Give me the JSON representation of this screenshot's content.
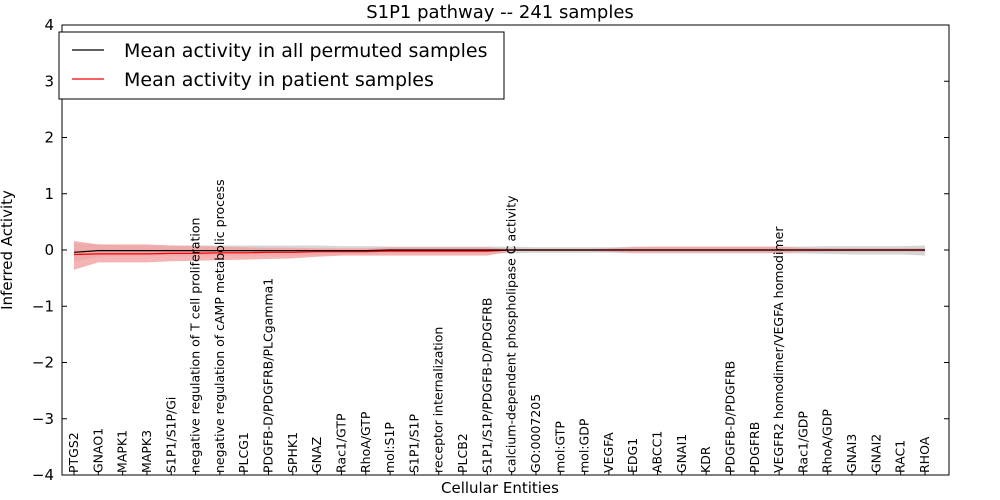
{
  "chart_data": {
    "type": "line",
    "title": "S1P1 pathway -- 241 samples",
    "xlabel": "Cellular Entities",
    "ylabel": "Inferred Activity",
    "ylim": [
      -4,
      4
    ],
    "yticks": [
      4,
      3,
      2,
      1,
      0,
      -1,
      -2,
      -3,
      -4
    ],
    "ytick_labels": [
      "4",
      "3",
      "2",
      "1",
      "0",
      "−1",
      "−2",
      "−3",
      "−4"
    ],
    "legend_position": "top-left",
    "categories": [
      "PTGS2",
      "GNAO1",
      "MAPK1",
      "MAPK3",
      "S1P1/S1P/Gi",
      "negative regulation of T cell proliferation",
      "negative regulation of cAMP metabolic process",
      "PLCG1",
      "PDGFB-D/PDGFRB/PLCgamma1",
      "SPHK1",
      "GNAZ",
      "Rac1/GTP",
      "RhoA/GTP",
      "mol:S1P",
      "S1P1/S1P",
      "receptor internalization",
      "PLCB2",
      "S1P1/S1P/PDGFB-D/PDGFRB",
      "calcium-dependent phospholipase C activity",
      "GO:0007205",
      "mol:GTP",
      "mol:GDP",
      "VEGFA",
      "EDG1",
      "ABCC1",
      "GNAI1",
      "KDR",
      "PDGFB-D/PDGFRB",
      "PDGFRB",
      "VEGFR2 homodimer/VEGFA homodimer",
      "Rac1/GDP",
      "RhoA/GDP",
      "GNAI3",
      "GNAI2",
      "RAC1",
      "RHOA"
    ],
    "series": [
      {
        "name": "Mean activity in all permuted samples",
        "color": "#000000",
        "band_color": "#c8c8c8",
        "values": [
          -0.04,
          -0.01,
          -0.01,
          -0.01,
          -0.01,
          -0.01,
          -0.01,
          -0.01,
          -0.01,
          -0.01,
          -0.01,
          -0.01,
          -0.01,
          0,
          0,
          0,
          0,
          0,
          0,
          0,
          0,
          0,
          0,
          0,
          0,
          0,
          0,
          0,
          0,
          0,
          0,
          0,
          0,
          0,
          0,
          0
        ],
        "band_lower": [
          -0.2,
          -0.12,
          -0.1,
          -0.1,
          -0.1,
          -0.1,
          -0.1,
          -0.1,
          -0.1,
          -0.1,
          -0.1,
          -0.08,
          -0.08,
          -0.06,
          -0.06,
          -0.06,
          -0.06,
          -0.06,
          -0.06,
          -0.05,
          -0.05,
          -0.05,
          -0.05,
          -0.06,
          -0.06,
          -0.06,
          -0.06,
          -0.06,
          -0.06,
          -0.06,
          -0.06,
          -0.07,
          -0.08,
          -0.08,
          -0.08,
          -0.1
        ],
        "band_upper": [
          0.12,
          0.1,
          0.08,
          0.08,
          0.08,
          0.08,
          0.08,
          0.08,
          0.08,
          0.08,
          0.08,
          0.07,
          0.07,
          0.06,
          0.06,
          0.06,
          0.06,
          0.06,
          0.06,
          0.05,
          0.05,
          0.05,
          0.05,
          0.06,
          0.06,
          0.06,
          0.06,
          0.06,
          0.06,
          0.06,
          0.06,
          0.07,
          0.07,
          0.07,
          0.07,
          0.08
        ]
      },
      {
        "name": "Mean activity in patient samples",
        "color": "#ff0000",
        "band_color": "#f4a0a0",
        "values": [
          -0.08,
          -0.07,
          -0.07,
          -0.07,
          -0.06,
          -0.06,
          -0.05,
          -0.05,
          -0.04,
          -0.04,
          -0.03,
          -0.03,
          -0.03,
          -0.02,
          -0.02,
          -0.02,
          -0.02,
          -0.02,
          0,
          0,
          0,
          0,
          0,
          0,
          0,
          0,
          0,
          0,
          0,
          0,
          0,
          0,
          0,
          0,
          0,
          0
        ],
        "band_lower": [
          -0.35,
          -0.22,
          -0.22,
          -0.22,
          -0.2,
          -0.19,
          -0.18,
          -0.17,
          -0.16,
          -0.15,
          -0.12,
          -0.1,
          -0.1,
          -0.1,
          -0.1,
          -0.1,
          -0.1,
          -0.1,
          -0.02,
          -0.02,
          -0.02,
          -0.02,
          -0.03,
          -0.05,
          -0.05,
          -0.05,
          -0.05,
          -0.05,
          -0.05,
          -0.05,
          -0.04,
          -0.03,
          -0.03,
          -0.03,
          -0.03,
          -0.03
        ],
        "band_upper": [
          0.16,
          0.1,
          0.1,
          0.1,
          0.08,
          0.07,
          0.06,
          0.05,
          0.04,
          0.04,
          0.03,
          0.03,
          0.03,
          0.05,
          0.05,
          0.05,
          0.05,
          0.05,
          0.02,
          0.02,
          0.02,
          0.02,
          0.03,
          0.05,
          0.06,
          0.06,
          0.06,
          0.06,
          0.06,
          0.06,
          0.04,
          0.03,
          0.03,
          0.03,
          0.03,
          0.03
        ]
      }
    ]
  }
}
